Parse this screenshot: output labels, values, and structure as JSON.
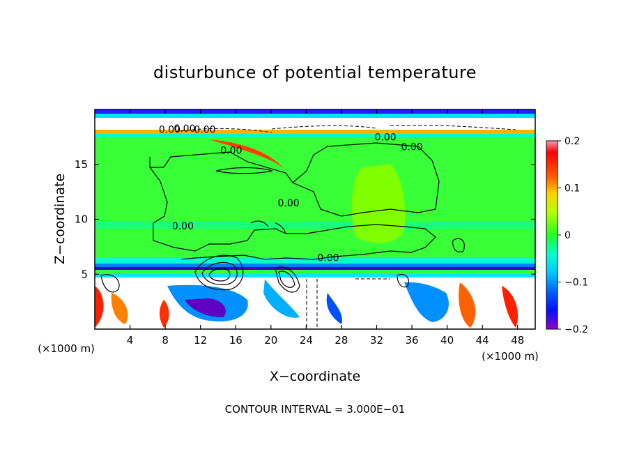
{
  "chart_data": {
    "type": "heatmap",
    "title": "disturbunce of potential temperature",
    "xlabel": "X−coordinate",
    "ylabel": "Z−coordinate",
    "x_unit_left": "(×1000 m)",
    "x_unit_right": "(×1000 m)",
    "xlim": [
      0,
      50
    ],
    "ylim": [
      0,
      20
    ],
    "x_ticks": [
      "4",
      "8",
      "12",
      "16",
      "20",
      "24",
      "28",
      "32",
      "36",
      "40",
      "44",
      "48"
    ],
    "x_tick_values": [
      4,
      8,
      12,
      16,
      20,
      24,
      28,
      32,
      36,
      40,
      44,
      48
    ],
    "y_ticks": [
      "5",
      "10",
      "15"
    ],
    "y_tick_values": [
      5,
      10,
      15
    ],
    "colorbar": {
      "range": [
        -0.2,
        0.2
      ],
      "tick_labels": [
        "0.2",
        "0.1",
        "0",
        "−0.1",
        "−0.2"
      ],
      "tick_values": [
        0.2,
        0.1,
        0,
        -0.1,
        -0.2
      ],
      "colors": [
        "#ff9ab4",
        "#ff0000",
        "#ff4a00",
        "#ff8c00",
        "#ffc800",
        "#e8ff00",
        "#a0ff00",
        "#40ff00",
        "#00ff55",
        "#00ffb4",
        "#00f0ff",
        "#00a0ff",
        "#0060ff",
        "#0010ff",
        "#6000c8",
        "#9400d3"
      ]
    },
    "contour_labels": [
      {
        "text": "0.00",
        "x": 8.5,
        "z": 18.2
      },
      {
        "text": "0.00",
        "x": 10.2,
        "z": 18.3
      },
      {
        "text": "0.00",
        "x": 12.5,
        "z": 18.2
      },
      {
        "text": "0.00",
        "x": 15.5,
        "z": 16.3
      },
      {
        "text": "0.00",
        "x": 33.0,
        "z": 17.5
      },
      {
        "text": "0.00",
        "x": 36.0,
        "z": 16.6
      },
      {
        "text": "0.00",
        "x": 10.0,
        "z": 9.4
      },
      {
        "text": "0.00",
        "x": 26.5,
        "z": 6.5
      },
      {
        "text": "0.00",
        "x": 22.0,
        "z": 11.5
      }
    ],
    "contour_interval_text": "CONTOUR INTERVAL = 3.000E−01",
    "grid": false
  }
}
